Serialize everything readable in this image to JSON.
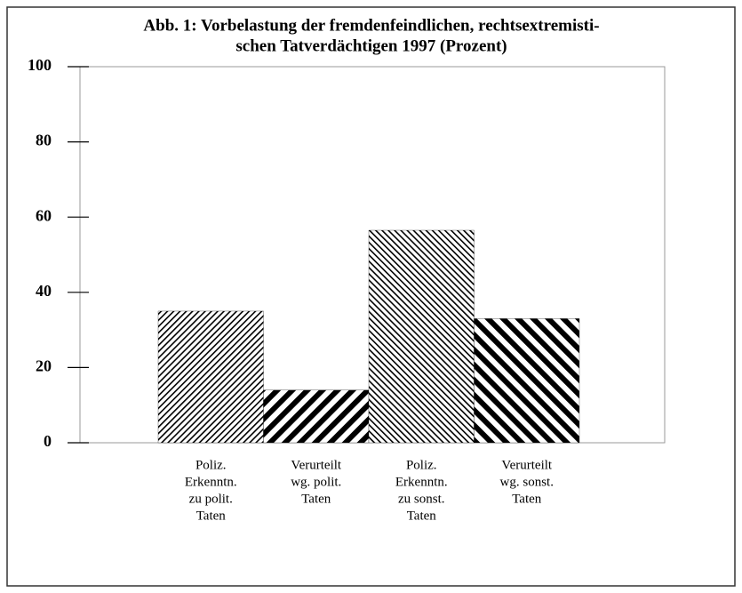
{
  "chart_data": {
    "type": "bar",
    "title": [
      "Abb. 1: Vorbelastung der fremdenfeindlichen, rechtsextremisti-",
      "schen Tatverdächtigen 1997 (Prozent)"
    ],
    "categories": [
      [
        "Poliz.",
        "Erkenntn.",
        "zu polit.",
        "Taten"
      ],
      [
        "Verurteilt",
        "wg. polit.",
        "Taten"
      ],
      [
        "Poliz.",
        "Erkenntn.",
        "zu sonst.",
        "Taten"
      ],
      [
        "Verurteilt",
        "wg. sonst.",
        "Taten"
      ]
    ],
    "values": [
      35,
      14,
      56.5,
      33
    ],
    "color": "#000000",
    "ylim": [
      0,
      100
    ],
    "yticks": [
      0,
      20,
      40,
      60,
      80,
      100
    ]
  }
}
